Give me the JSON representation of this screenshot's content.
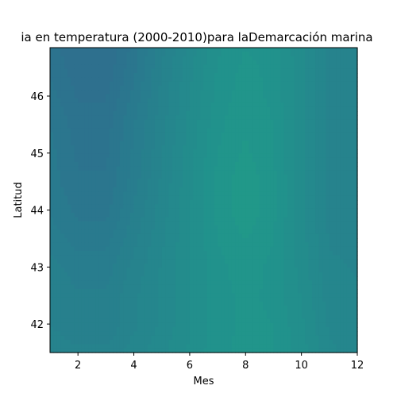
{
  "chart_data": {
    "type": "heatmap",
    "subtype": "filled-contour",
    "title": "ia en temperatura (2000-2010)para laDemarcación marina",
    "xlabel": "Mes",
    "ylabel": "Latitud",
    "xlim": [
      1,
      12
    ],
    "ylim": [
      41.5,
      46.85
    ],
    "x_ticks": [
      "2",
      "4",
      "6",
      "8",
      "10",
      "12"
    ],
    "y_ticks": [
      "42",
      "43",
      "44",
      "45",
      "46"
    ],
    "x": [
      1,
      2,
      3,
      4,
      5,
      6,
      7,
      8,
      9,
      10,
      11,
      12
    ],
    "y": [
      41.5,
      42,
      42.5,
      43,
      43.5,
      44,
      44.5,
      45,
      45.5,
      46,
      46.5,
      46.85
    ],
    "z_rows_by_latitude": [
      [
        0.45,
        0.42,
        0.42,
        0.5,
        0.58,
        0.68,
        0.78,
        0.82,
        0.8,
        0.7,
        0.55,
        0.5
      ],
      [
        0.4,
        0.34,
        0.34,
        0.45,
        0.55,
        0.66,
        0.77,
        0.82,
        0.8,
        0.68,
        0.52,
        0.48
      ],
      [
        0.4,
        0.34,
        0.34,
        0.45,
        0.55,
        0.66,
        0.77,
        0.82,
        0.78,
        0.66,
        0.5,
        0.48
      ],
      [
        0.36,
        0.3,
        0.3,
        0.42,
        0.54,
        0.66,
        0.78,
        0.84,
        0.78,
        0.64,
        0.48,
        0.46
      ],
      [
        0.3,
        0.24,
        0.24,
        0.38,
        0.52,
        0.66,
        0.8,
        0.87,
        0.8,
        0.63,
        0.46,
        0.44
      ],
      [
        0.26,
        0.18,
        0.18,
        0.34,
        0.5,
        0.66,
        0.82,
        0.92,
        0.82,
        0.63,
        0.44,
        0.42
      ],
      [
        0.24,
        0.14,
        0.14,
        0.3,
        0.48,
        0.65,
        0.82,
        0.92,
        0.82,
        0.63,
        0.44,
        0.42
      ],
      [
        0.22,
        0.12,
        0.12,
        0.28,
        0.46,
        0.64,
        0.8,
        0.88,
        0.8,
        0.62,
        0.44,
        0.42
      ],
      [
        0.2,
        0.1,
        0.1,
        0.26,
        0.44,
        0.62,
        0.78,
        0.86,
        0.8,
        0.62,
        0.44,
        0.42
      ],
      [
        0.16,
        0.06,
        0.06,
        0.22,
        0.42,
        0.6,
        0.76,
        0.84,
        0.78,
        0.62,
        0.44,
        0.42
      ],
      [
        0.12,
        0.02,
        0.02,
        0.18,
        0.4,
        0.58,
        0.74,
        0.82,
        0.78,
        0.62,
        0.44,
        0.42
      ],
      [
        0.1,
        0.0,
        0.0,
        0.16,
        0.38,
        0.56,
        0.72,
        0.8,
        0.76,
        0.62,
        0.44,
        0.42
      ]
    ],
    "colormap": "viridis",
    "color_range": [
      0.46,
      0.7
    ],
    "levels": 15,
    "grid": false
  }
}
